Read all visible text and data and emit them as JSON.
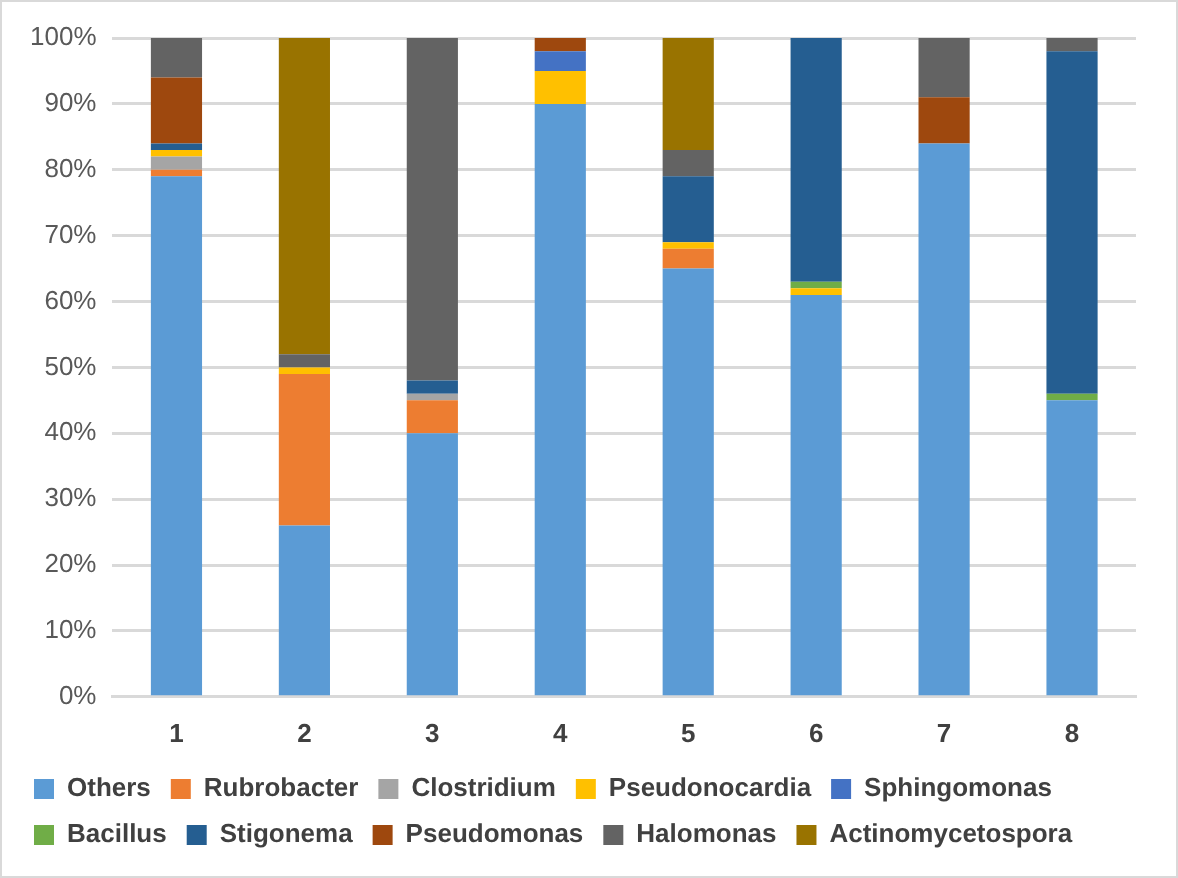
{
  "chart_data": {
    "type": "bar",
    "stacked": true,
    "categories": [
      "1",
      "2",
      "3",
      "4",
      "5",
      "6",
      "7",
      "8"
    ],
    "series": [
      {
        "name": "Others",
        "color": "#5b9bd5",
        "values": [
          79,
          26,
          40,
          90,
          65,
          61,
          84,
          45
        ]
      },
      {
        "name": "Rubrobacter",
        "color": "#ed7d31",
        "values": [
          1,
          23,
          5,
          0,
          3,
          0,
          0,
          0
        ]
      },
      {
        "name": "Clostridium",
        "color": "#a5a5a5",
        "values": [
          2,
          0,
          1,
          0,
          0,
          0,
          0,
          0
        ]
      },
      {
        "name": "Pseudonocardia",
        "color": "#ffc000",
        "values": [
          1,
          1,
          0,
          5,
          1,
          1,
          0,
          0
        ]
      },
      {
        "name": "Sphingomonas",
        "color": "#4472c4",
        "values": [
          0,
          0,
          0,
          3,
          0,
          0,
          0,
          0
        ]
      },
      {
        "name": "Bacillus",
        "color": "#70ad47",
        "values": [
          0,
          0,
          0,
          0,
          0,
          1,
          0,
          1
        ]
      },
      {
        "name": "Stigonema",
        "color": "#255e91",
        "values": [
          1,
          0,
          2,
          0,
          10,
          37,
          0,
          52
        ]
      },
      {
        "name": "Pseudomonas",
        "color": "#9e480e",
        "values": [
          10,
          0,
          0,
          2,
          0,
          0,
          7,
          0
        ]
      },
      {
        "name": "Halomonas",
        "color": "#636363",
        "values": [
          6,
          2,
          52,
          0,
          4,
          0,
          9,
          2
        ]
      },
      {
        "name": "Actinomycetospora",
        "color": "#997300",
        "values": [
          0,
          48,
          0,
          0,
          17,
          0,
          0,
          0
        ]
      }
    ],
    "ylim": [
      0,
      100
    ],
    "yticks": [
      {
        "value": 0,
        "label": "0%"
      },
      {
        "value": 10,
        "label": "10%"
      },
      {
        "value": 20,
        "label": "20%"
      },
      {
        "value": 30,
        "label": "30%"
      },
      {
        "value": 40,
        "label": "40%"
      },
      {
        "value": 50,
        "label": "50%"
      },
      {
        "value": 60,
        "label": "60%"
      },
      {
        "value": 70,
        "label": "70%"
      },
      {
        "value": 80,
        "label": "80%"
      },
      {
        "value": 90,
        "label": "90%"
      },
      {
        "value": 100,
        "label": "100%"
      }
    ],
    "grid": "y",
    "legend": "bottom"
  }
}
